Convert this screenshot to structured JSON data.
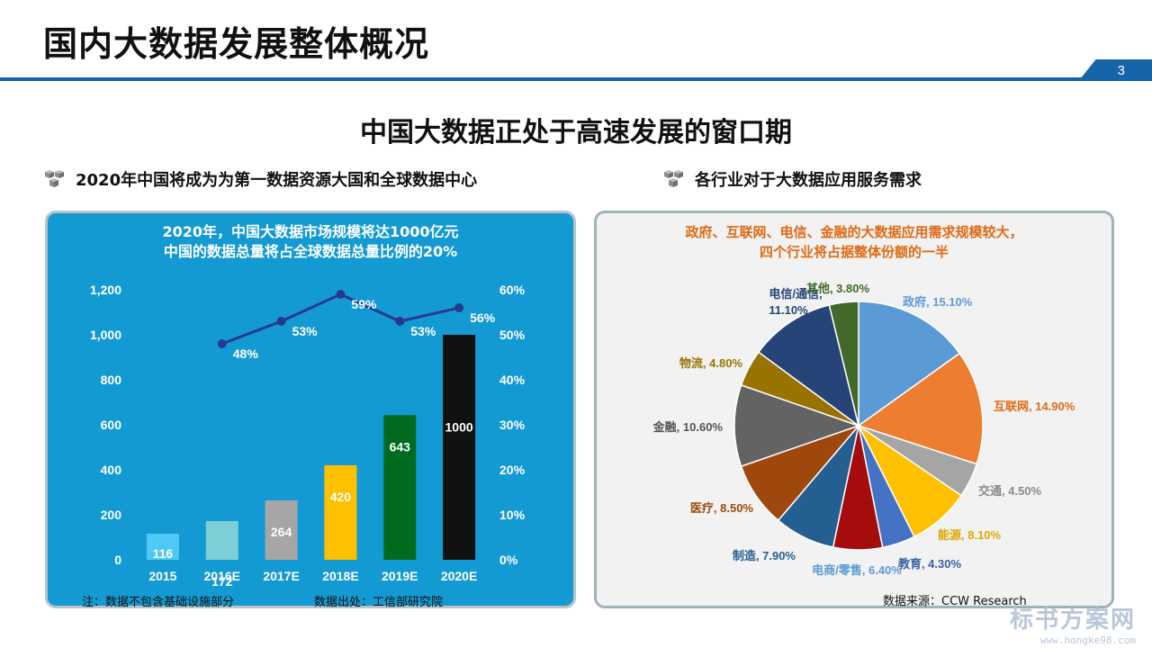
{
  "page": {
    "title": "国内大数据发展整体概况",
    "page_number": "3",
    "subtitle": "中国大数据正处于高速发展的窗口期",
    "accent_color": "#1565a8"
  },
  "left_section": {
    "heading": "2020年中国将成为为第一数据资源大国和全球数据中心",
    "panel_title_line1": "2020年，中国大数据市场规模将达1000亿元",
    "panel_title_line2": "中国的数据总量将占全球数据总量比例的20%",
    "note": "注：数据不包含基础设施部分",
    "source": "数据出处：工信部研究院"
  },
  "right_section": {
    "heading": "各行业对于大数据应用服务需求",
    "panel_title_line1": "政府、互联网、电信、金融的大数据应用需求规模较大，",
    "panel_title_line2": "四个行业将占据整体份额的一半",
    "source": "数据来源：CCW Research"
  },
  "watermark": {
    "name": "标书方案网",
    "url": "www.hongke98.com"
  },
  "chart_data": [
    {
      "type": "bar",
      "categories": [
        "2015",
        "2016E",
        "2017E",
        "2018E",
        "2019E",
        "2020E"
      ],
      "series": [
        {
          "name": "市场规模(亿元)",
          "values": [
            116,
            172,
            264,
            420,
            643,
            1000
          ],
          "labels": [
            "116",
            "172",
            "264",
            "420",
            "643",
            "1000"
          ],
          "colors": [
            "#4fc8f5",
            "#7ccfd6",
            "#a6a6a6",
            "#ffc000",
            "#006b1e",
            "#111111"
          ]
        },
        {
          "name": "占全球比例",
          "type": "line",
          "values": [
            48,
            53,
            59,
            53,
            56
          ],
          "x": [
            "2016E",
            "2017E",
            "2018E",
            "2019E",
            "2020E"
          ],
          "labels": [
            "48%",
            "53%",
            "59%",
            "53%",
            "56%"
          ],
          "color": "#253a8e"
        }
      ],
      "y_left": {
        "min": 0,
        "max": 1200,
        "ticks": [
          "0",
          "200",
          "400",
          "600",
          "800",
          "1,000",
          "1,200"
        ]
      },
      "y_right": {
        "min": 0,
        "max": 60,
        "ticks": [
          "0%",
          "10%",
          "20%",
          "30%",
          "40%",
          "50%",
          "60%"
        ]
      },
      "legend": "none"
    },
    {
      "type": "pie",
      "slices": [
        {
          "name": "政府",
          "value": 15.1,
          "label": "政府, 15.10%",
          "color": "#5b9bd5",
          "label_color": "#5b9bd5"
        },
        {
          "name": "互联网",
          "value": 14.9,
          "label": "互联网, 14.90%",
          "color": "#ed7d31",
          "label_color": "#e06a14"
        },
        {
          "name": "交通",
          "value": 4.5,
          "label": "交通, 4.50%",
          "color": "#a5a5a5",
          "label_color": "#8a8a8a"
        },
        {
          "name": "能源",
          "value": 8.1,
          "label": "能源, 8.10%",
          "color": "#ffc000",
          "label_color": "#e0a800"
        },
        {
          "name": "教育",
          "value": 4.3,
          "label": "教育, 4.30%",
          "color": "#4472c4",
          "label_color": "#3a62a8"
        },
        {
          "name": "电商/零售",
          "value": 6.4,
          "label": "电商/零售, 6.40%",
          "color": "#a50d0d",
          "label_color": "#5b9bd5"
        },
        {
          "name": "制造",
          "value": 7.9,
          "label": "制造, 7.90%",
          "color": "#255e91",
          "label_color": "#255e91"
        },
        {
          "name": "医疗",
          "value": 8.5,
          "label": "医疗, 8.50%",
          "color": "#9e480e",
          "label_color": "#9e480e"
        },
        {
          "name": "金融",
          "value": 10.6,
          "label": "金融, 10.60%",
          "color": "#636363",
          "label_color": "#555555"
        },
        {
          "name": "物流",
          "value": 4.8,
          "label": "物流, 4.80%",
          "color": "#997300",
          "label_color": "#997300"
        },
        {
          "name": "电信/通信",
          "value": 11.1,
          "label_line1": "电信/通信,",
          "label_line2": "11.10%",
          "color": "#264478",
          "label_color": "#264478"
        },
        {
          "name": "其他",
          "value": 3.8,
          "label": "其他, 3.80%",
          "color": "#43682b",
          "label_color": "#43682b"
        }
      ]
    }
  ]
}
